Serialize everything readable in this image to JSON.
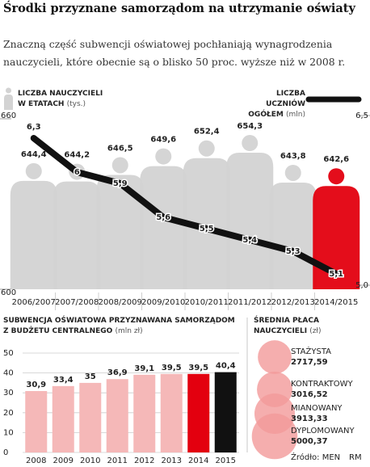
{
  "title": "Środki przyznane samorządom na utrzymanie oświaty",
  "subtitle": "Znaczną część subwencji oświatowej pochłaniają wynagrodzenia nauczycieli, które obecnie są o blisko 50 proc. wyższe niż w 2008 r.",
  "chart_data": [
    {
      "type": "combo",
      "categories": [
        "2006/2007",
        "2007/2008",
        "2008/2009",
        "2009/2010",
        "2010/2011",
        "2011/2012",
        "2012/2013",
        "2014/2015"
      ],
      "series": [
        {
          "name": "LICZBA NAUCZYCIELI W ETATACH",
          "unit": "(tys.)",
          "type": "person-icon",
          "colors": [
            "#d3d3d3",
            "#d3d3d3",
            "#d3d3d3",
            "#d3d3d3",
            "#d3d3d3",
            "#d3d3d3",
            "#d3d3d3",
            "#e3000f"
          ],
          "values": [
            644.4,
            644.2,
            646.5,
            649.6,
            652.4,
            654.3,
            643.8,
            642.6
          ],
          "value_labels": [
            "644,4",
            "644,2",
            "646,5",
            "649,6",
            "652,4",
            "654,3",
            "643,8",
            "642,6"
          ]
        },
        {
          "name": "LICZBA UCZNIÓW OGÓŁEM",
          "unit": "(mln)",
          "type": "line",
          "color": "#111111",
          "axis": "y2",
          "values": [
            6.3,
            6,
            5.9,
            5.6,
            5.5,
            5.4,
            5.3,
            5.1
          ],
          "value_labels": [
            "6,3",
            "6",
            "5,9",
            "5,6",
            "5,5",
            "5,4",
            "5,3",
            "5,1"
          ]
        }
      ],
      "ylim": [
        600,
        660
      ],
      "yticks": [
        600,
        660
      ],
      "y2lim": [
        5,
        6.5
      ],
      "y2ticks": [
        {
          "value": 5,
          "label": "5,0"
        },
        {
          "value": 6.5,
          "label": "6,5"
        }
      ]
    },
    {
      "type": "bar",
      "title": "SUBWENCJA OŚWIATOWA PRZYZNAWANA SAMORZĄDOM Z BUDŻETU CENTRALNEGO",
      "unit": "(mln zł)",
      "categories": [
        "2008",
        "2009",
        "2010",
        "2011",
        "2012",
        "2013",
        "2014",
        "2015"
      ],
      "values": [
        30.9,
        33.4,
        35,
        36.9,
        39.1,
        39.5,
        39.5,
        40.4
      ],
      "value_labels": [
        "30,9",
        "33,4",
        "35",
        "36,9",
        "39,1",
        "39,5",
        "39,5",
        "40,4"
      ],
      "colors": [
        "#f5b8b8",
        "#f5b8b8",
        "#f5b8b8",
        "#f5b8b8",
        "#f5b8b8",
        "#f5b8b8",
        "#e3000f",
        "#111111"
      ],
      "ylim": [
        0,
        50
      ],
      "yticks": [
        0,
        10,
        20,
        30,
        40,
        50
      ],
      "grid": true
    },
    {
      "type": "bubble",
      "title": "ŚREDNIA PŁACA NAUCZYCIELI",
      "unit": "(zł)",
      "categories": [
        "STAŻYSTA",
        "KONTRAKTOWY",
        "MIANOWANY",
        "DYPLOMOWANY"
      ],
      "values": [
        2717.59,
        3016.52,
        3913.33,
        5000.37
      ],
      "value_labels": [
        "2717,59",
        "3016,52",
        "3913,33",
        "5000,37"
      ],
      "color": "#f29a9a"
    }
  ],
  "source": "Źródło: MEN",
  "credit": "RM"
}
